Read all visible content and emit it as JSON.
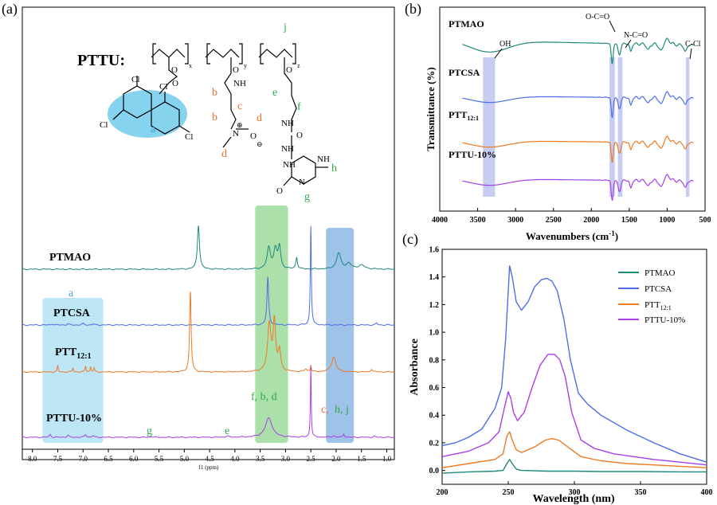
{
  "panel_labels": {
    "a": "(a)",
    "b": "(b)",
    "c": "(c)"
  },
  "colors": {
    "PTMAO": "#1c8a7a",
    "PTCSA": "#4e6ee8",
    "PTT": "#ee7a22",
    "PTTU": "#a93fe8",
    "green_band": "#66c766",
    "blue_band": "#4f8fd6",
    "cyan_band": "#86d3f0",
    "ir_band": "#aeb7ec",
    "label_orange": "#e8702a",
    "label_green": "#2faa4a",
    "label_blue": "#3fa5d8"
  },
  "structure": {
    "title": "PTTU:",
    "subscripts": [
      "x",
      "y",
      "z"
    ],
    "atoms": [
      "O",
      "O",
      "O",
      "O",
      "NH",
      "N",
      "O",
      "NH",
      "O",
      "NH",
      "NH",
      "N",
      "NH",
      "O",
      "Cl",
      "Cl",
      "Cl",
      "Cl",
      "⊕",
      "⊖"
    ],
    "letters": [
      "a",
      "b",
      "b",
      "c",
      "d",
      "d",
      "e",
      "f",
      "g",
      "h",
      "j"
    ]
  },
  "chart_data": [
    {
      "panel": "a",
      "type": "line",
      "xlabel": "f1 (ppm)",
      "xlim": [
        8.2,
        0.85
      ],
      "xticks": [
        "8.0",
        "7.5",
        "7.0",
        "6.5",
        "6.0",
        "5.5",
        "5.0",
        "4.5",
        "4.0",
        "3.5",
        "3.0",
        "2.5",
        "2.0",
        "1.5",
        "1.0"
      ],
      "xtick_values": [
        8.0,
        7.5,
        7.0,
        6.5,
        6.0,
        5.5,
        5.0,
        4.5,
        4.0,
        3.5,
        3.0,
        2.5,
        2.0,
        1.5,
        1.0
      ],
      "series": [
        {
          "name": "PTMAO",
          "label": "PTMAO",
          "offset": 3,
          "peaks": [
            [
              4.72,
              1.15,
              0.025
            ],
            [
              3.33,
              0.55,
              0.04
            ],
            [
              3.2,
              0.5,
              0.04
            ],
            [
              3.12,
              0.55,
              0.03
            ],
            [
              2.78,
              0.3,
              0.02
            ],
            [
              1.95,
              0.42,
              0.05
            ],
            [
              1.75,
              0.14,
              0.06
            ],
            [
              1.5,
              0.1,
              0.08
            ]
          ]
        },
        {
          "name": "PTCSA",
          "label": "PTCSA",
          "offset": 2,
          "peaks": [
            [
              7.6,
              0.03,
              0.02
            ],
            [
              7.3,
              0.03,
              0.02
            ],
            [
              7.0,
              0.04,
              0.02
            ],
            [
              6.8,
              0.03,
              0.02
            ],
            [
              3.35,
              1.25,
              0.02
            ],
            [
              2.5,
              2.6,
              0.012
            ],
            [
              1.2,
              0.05,
              0.02
            ]
          ]
        },
        {
          "name": "PTT",
          "label": "PTT",
          "label_sub": "12:1",
          "offset": 1,
          "peaks": [
            [
              7.5,
              0.18,
              0.012
            ],
            [
              7.2,
              0.12,
              0.012
            ],
            [
              6.95,
              0.18,
              0.012
            ],
            [
              6.85,
              0.15,
              0.012
            ],
            [
              6.78,
              0.12,
              0.012
            ],
            [
              4.88,
              2.4,
              0.018
            ],
            [
              3.32,
              1.4,
              0.04
            ],
            [
              3.22,
              1.45,
              0.03
            ],
            [
              3.12,
              0.6,
              0.03
            ],
            [
              2.6,
              0.08,
              0.03
            ],
            [
              2.5,
              0.2,
              0.01
            ],
            [
              2.05,
              0.45,
              0.05
            ],
            [
              1.3,
              0.08,
              0.02
            ]
          ]
        },
        {
          "name": "PTTU-10%",
          "label": "PTTU-10%",
          "offset": 0,
          "peaks": [
            [
              7.65,
              0.08,
              0.02
            ],
            [
              7.3,
              0.06,
              0.02
            ],
            [
              6.95,
              0.08,
              0.02
            ],
            [
              6.8,
              0.05,
              0.02
            ],
            [
              5.65,
              0.02,
              0.03
            ],
            [
              4.15,
              0.03,
              0.03
            ],
            [
              3.33,
              0.55,
              0.08
            ],
            [
              2.5,
              2.0,
              0.01
            ],
            [
              2.05,
              0.04,
              0.03
            ],
            [
              1.85,
              0.1,
              0.015
            ],
            [
              1.25,
              0.03,
              0.02
            ]
          ]
        }
      ],
      "highlight_bands": [
        {
          "name": "aromatic",
          "range": [
            7.8,
            6.6
          ],
          "label": "a"
        },
        {
          "name": "f-b-d",
          "range": [
            3.6,
            2.95
          ],
          "label": "f, b, d"
        },
        {
          "name": "c-h-j",
          "range": [
            2.2,
            1.65
          ],
          "label_c": "c,",
          "label_hj": "h, j"
        }
      ],
      "annotations": {
        "g": "g",
        "e": "e"
      }
    },
    {
      "panel": "b",
      "type": "line",
      "xlabel": "Wavenumbers (cm",
      "xlabel_sup": "-1",
      "xlabel_end": ")",
      "ylabel": "Transmittance (%)",
      "xlim": [
        4000,
        500
      ],
      "xticks": [
        "4000",
        "3500",
        "3000",
        "2500",
        "2000",
        "1500",
        "1000",
        "500"
      ],
      "xtick_values": [
        4000,
        3500,
        3000,
        2500,
        2000,
        1500,
        1000,
        500
      ],
      "series": [
        {
          "name": "PTMAO",
          "label": "PTMAO",
          "offset": 3
        },
        {
          "name": "PTCSA",
          "label": "PTCSA",
          "offset": 2
        },
        {
          "name": "PTT",
          "label": "PTT",
          "label_sub": "12:1",
          "offset": 1
        },
        {
          "name": "PTTU-10%",
          "label": "PTTU-10%",
          "offset": 0
        }
      ],
      "bands": [
        {
          "name": "OH",
          "center": 3350,
          "label": "OH"
        },
        {
          "name": "O-C=O",
          "center": 1725,
          "label": "O-C=O"
        },
        {
          "name": "N-C=O",
          "center": 1620,
          "label": "N-C=O"
        },
        {
          "name": "C-Cl",
          "center": 730,
          "label": "C-Cl"
        }
      ]
    },
    {
      "panel": "c",
      "type": "line",
      "xlabel": "Wavelength (nm)",
      "ylabel": "Absorbance",
      "xlim": [
        200,
        400
      ],
      "ylim": [
        -0.1,
        1.6
      ],
      "xticks": [
        "200",
        "250",
        "300",
        "350",
        "400"
      ],
      "xtick_values": [
        200,
        250,
        300,
        350,
        400
      ],
      "yticks": [
        "0.0",
        "0.2",
        "0.4",
        "0.6",
        "0.8",
        "1.0",
        "1.2",
        "1.4",
        "1.6"
      ],
      "ytick_values": [
        0,
        0.2,
        0.4,
        0.6,
        0.8,
        1.0,
        1.2,
        1.4,
        1.6
      ],
      "legend": {
        "placement": "top-right",
        "entries": [
          "PTMAO",
          "PTCSA",
          "PTT",
          "PTTU-10%"
        ],
        "sub": [
          "",
          "",
          "12:1",
          ""
        ]
      },
      "series": [
        {
          "name": "PTMAO",
          "x": [
            200,
            220,
            240,
            246,
            249,
            251,
            253,
            256,
            260,
            280,
            300,
            320,
            350,
            380,
            400
          ],
          "y": [
            -0.02,
            -0.01,
            -0.005,
            0.0,
            0.05,
            0.08,
            0.05,
            0.01,
            0.0,
            -0.005,
            -0.005,
            -0.008,
            -0.008,
            -0.01,
            -0.01
          ]
        },
        {
          "name": "PTCSA",
          "x": [
            200,
            210,
            220,
            230,
            240,
            245,
            248,
            251,
            253,
            256,
            260,
            265,
            270,
            275,
            279,
            283,
            287,
            292,
            297,
            303,
            310,
            320,
            340,
            360,
            380,
            400
          ],
          "y": [
            0.18,
            0.2,
            0.24,
            0.3,
            0.45,
            0.6,
            0.95,
            1.48,
            1.4,
            1.22,
            1.16,
            1.22,
            1.33,
            1.38,
            1.39,
            1.37,
            1.3,
            1.1,
            0.8,
            0.56,
            0.48,
            0.4,
            0.29,
            0.2,
            0.12,
            0.06
          ]
        },
        {
          "name": "PTT",
          "x": [
            200,
            220,
            240,
            246,
            249,
            251,
            253,
            256,
            260,
            270,
            278,
            283,
            288,
            295,
            305,
            320,
            340,
            360,
            380,
            400
          ],
          "y": [
            0.02,
            0.05,
            0.08,
            0.12,
            0.25,
            0.28,
            0.22,
            0.15,
            0.13,
            0.17,
            0.22,
            0.23,
            0.22,
            0.17,
            0.1,
            0.07,
            0.05,
            0.04,
            0.03,
            0.02
          ]
        },
        {
          "name": "PTTU-10%",
          "x": [
            200,
            220,
            235,
            243,
            247,
            250,
            252,
            254,
            257,
            262,
            268,
            274,
            280,
            285,
            289,
            293,
            298,
            305,
            315,
            330,
            345,
            360,
            380,
            400
          ],
          "y": [
            0.1,
            0.14,
            0.2,
            0.28,
            0.45,
            0.57,
            0.52,
            0.42,
            0.36,
            0.42,
            0.6,
            0.76,
            0.84,
            0.84,
            0.8,
            0.68,
            0.42,
            0.22,
            0.16,
            0.12,
            0.1,
            0.08,
            0.06,
            0.04
          ]
        }
      ]
    }
  ]
}
